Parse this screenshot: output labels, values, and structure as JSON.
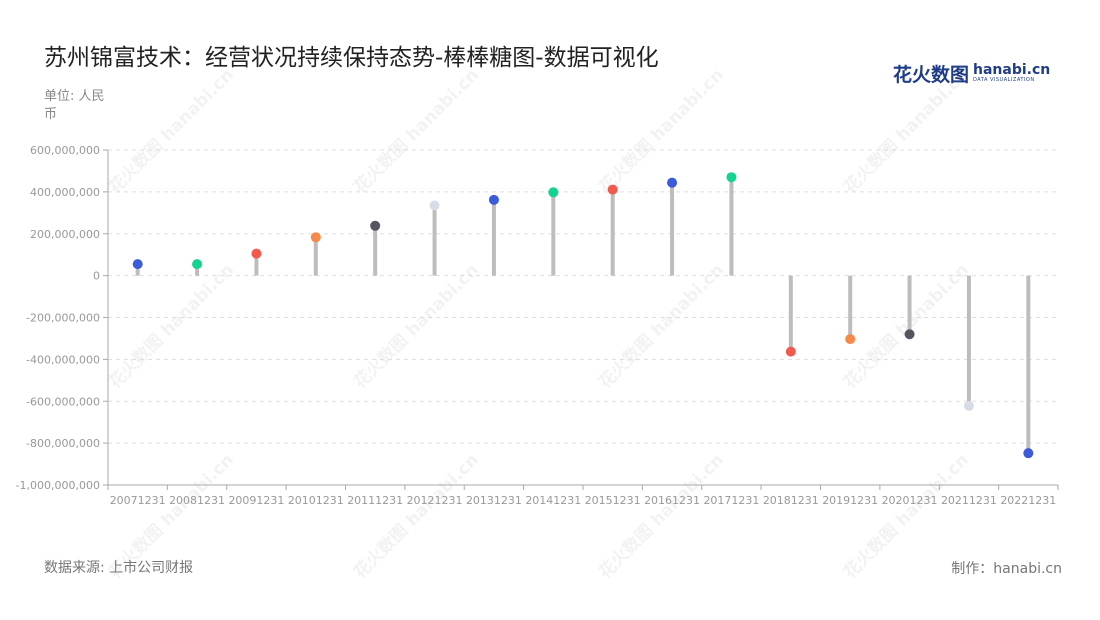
{
  "title": "苏州锦富技术：经营状况持续保持态势-棒棒糖图-数据可视化",
  "brand": {
    "cn": "花火数图",
    "en": "hanabi.cn",
    "en_sub": "DATA VISUALIZATION"
  },
  "unit_label": "单位: 人民币",
  "source_label": "数据来源: 上市公司财报",
  "credit_label": "制作：hanabi.cn",
  "watermark_text": "花火数图 hanabi.cn",
  "colors": {
    "stem": "#bdbdbd",
    "grid": "#dddddd",
    "palette": [
      "#3b5bdb",
      "#12d38f",
      "#f25a4e",
      "#f7894a",
      "#555560",
      "#d6dde8"
    ]
  },
  "chart_data": {
    "type": "lollipop",
    "title": "苏州锦富技术：经营状况持续保持态势-棒棒糖图-数据可视化",
    "xlabel": "",
    "ylabel": "单位: 人民币",
    "ylim": [
      -1000000000,
      600000000
    ],
    "yticks": [
      600000000,
      400000000,
      200000000,
      0,
      -200000000,
      -400000000,
      -600000000,
      -800000000,
      -1000000000
    ],
    "ytick_labels": [
      "600,000,000",
      "400,000,000",
      "200,000,000",
      "0",
      "-200,000,000",
      "-400,000,000",
      "-600,000,000",
      "-800,000,000",
      "-1,000,000,000"
    ],
    "grid": true,
    "categories": [
      "20071231",
      "20081231",
      "20091231",
      "20101231",
      "20111231",
      "20121231",
      "20131231",
      "20141231",
      "20151231",
      "20161231",
      "20171231",
      "20181231",
      "20191231",
      "20201231",
      "20211231",
      "20221231"
    ],
    "values": [
      55000000,
      55000000,
      105000000,
      183000000,
      238000000,
      335000000,
      362000000,
      398000000,
      411000000,
      444000000,
      470000000,
      -363000000,
      -303000000,
      -280000000,
      -622000000,
      -848000000
    ],
    "point_colors": [
      "#3b5bdb",
      "#12d38f",
      "#f25a4e",
      "#f7894a",
      "#555560",
      "#d6dde8",
      "#3b5bdb",
      "#12d38f",
      "#f25a4e",
      "#3b5bdb",
      "#12d38f",
      "#f25a4e",
      "#f7894a",
      "#555560",
      "#d6dde8",
      "#3b5bdb"
    ]
  }
}
